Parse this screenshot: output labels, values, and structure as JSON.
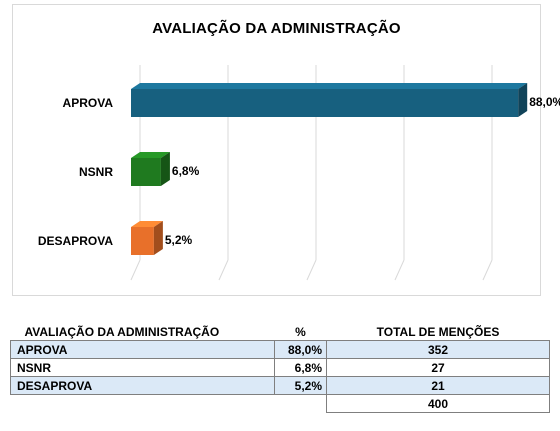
{
  "chart_data": {
    "type": "bar",
    "orientation": "horizontal",
    "title": "AVALIAÇÃO DA ADMINISTRAÇÃO",
    "categories": [
      "APROVA",
      "NSNR",
      "DESAPROVA"
    ],
    "values": [
      88.0,
      6.8,
      5.2
    ],
    "value_labels": [
      "88,0%",
      "6,8%",
      "5,2%"
    ],
    "colors": [
      "#17607f",
      "#1f7a1f",
      "#e8702a"
    ],
    "xlim": [
      0,
      100
    ],
    "grid": true,
    "legend": "none"
  },
  "table": {
    "headers": [
      "AVALIAÇÃO DA ADMINISTRAÇÃO",
      "%",
      "TOTAL DE MENÇÕES"
    ],
    "rows": [
      {
        "label": "APROVA",
        "percent": "88,0%",
        "total": "352"
      },
      {
        "label": "NSNR",
        "percent": "6,8%",
        "total": "27"
      },
      {
        "label": "DESAPROVA",
        "percent": "5,2%",
        "total": "21"
      }
    ],
    "grand_total": "400"
  }
}
